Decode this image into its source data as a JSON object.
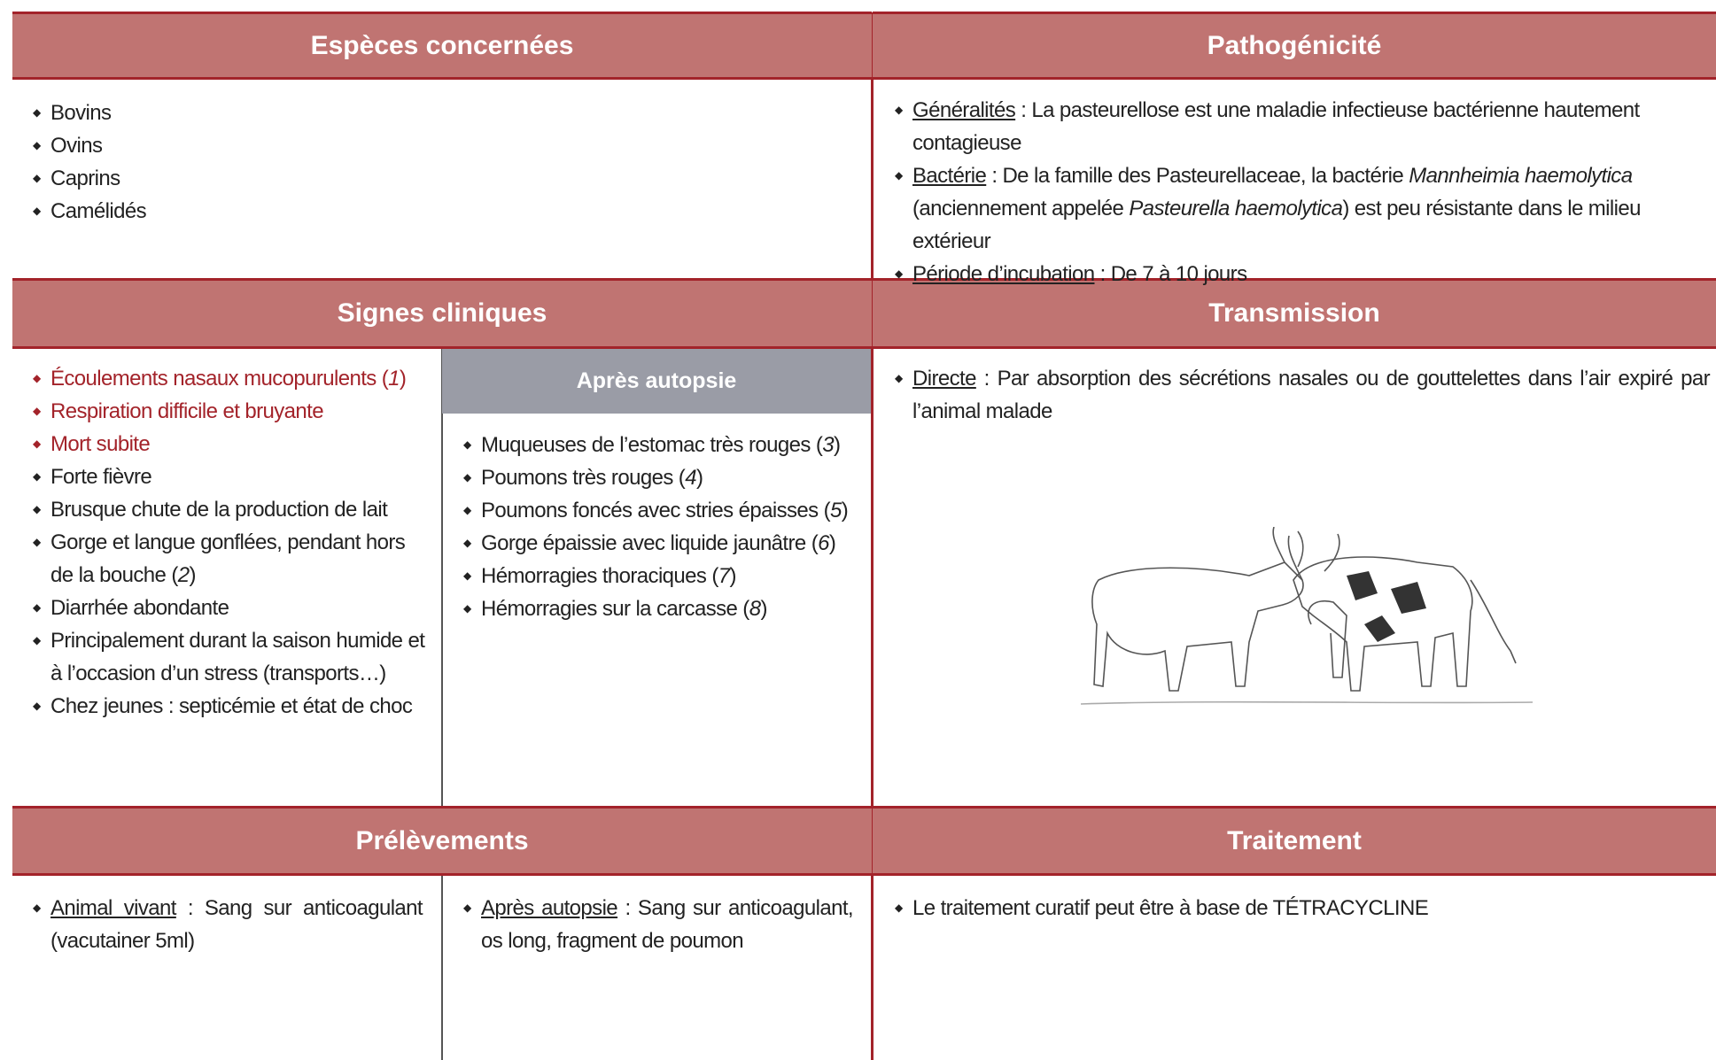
{
  "sections": {
    "especes": {
      "title": "Espèces concernées",
      "items": [
        {
          "segments": [
            {
              "text": "Bovins"
            }
          ]
        },
        {
          "segments": [
            {
              "text": "Ovins"
            }
          ]
        },
        {
          "segments": [
            {
              "text": "Caprins"
            }
          ]
        },
        {
          "segments": [
            {
              "text": "Camélidés"
            }
          ]
        }
      ]
    },
    "pathogenicite": {
      "title": "Pathogénicité",
      "items": [
        {
          "segments": [
            {
              "text": "Généralités",
              "style": "underline"
            },
            {
              "text": " : La pasteurellose est une maladie infectieuse bactérienne hautement contagieuse"
            }
          ]
        },
        {
          "segments": [
            {
              "text": "Bactérie",
              "style": "underline"
            },
            {
              "text": " : De la famille des Pasteurellaceae, la bactérie "
            },
            {
              "text": "Mannheimia haemolytica",
              "style": "italic"
            },
            {
              "text": " (anciennement appelée "
            },
            {
              "text": "Pasteurella haemolytica",
              "style": "italic"
            },
            {
              "text": ") est peu résistante dans le milieu extérieur"
            }
          ]
        },
        {
          "segments": [
            {
              "text": "Période d’incubation",
              "style": "underline"
            },
            {
              "text": " : De 7 à 10 jours"
            }
          ]
        }
      ]
    },
    "signes": {
      "title": "Signes cliniques",
      "items": [
        {
          "color": "#a3232a",
          "segments": [
            {
              "text": "Écoulements nasaux mucopurulents ("
            },
            {
              "text": "1",
              "style": "italic"
            },
            {
              "text": ")"
            }
          ]
        },
        {
          "color": "#a3232a",
          "segments": [
            {
              "text": "Respiration difficile et bruyante"
            }
          ]
        },
        {
          "color": "#a3232a",
          "segments": [
            {
              "text": "Mort subite"
            }
          ]
        },
        {
          "segments": [
            {
              "text": "Forte fièvre"
            }
          ]
        },
        {
          "segments": [
            {
              "text": "Brusque chute de la production de lait"
            }
          ]
        },
        {
          "segments": [
            {
              "text": "Gorge et langue gonflées, pendant hors de la bouche ("
            },
            {
              "text": "2",
              "style": "italic"
            },
            {
              "text": ")"
            }
          ]
        },
        {
          "segments": [
            {
              "text": "Diarrhée abondante"
            }
          ]
        },
        {
          "segments": [
            {
              "text": "Principalement durant la saison humide et à l’occasion d’un stress (transports…)"
            }
          ]
        },
        {
          "segments": [
            {
              "text": "Chez jeunes : septicémie et état de choc"
            }
          ]
        }
      ]
    },
    "autopsie": {
      "title": "Après autopsie",
      "items": [
        {
          "segments": [
            {
              "text": "Muqueuses de l’estomac très rouges ("
            },
            {
              "text": "3",
              "style": "italic"
            },
            {
              "text": ")"
            }
          ]
        },
        {
          "segments": [
            {
              "text": "Poumons très rouges ("
            },
            {
              "text": "4",
              "style": "italic"
            },
            {
              "text": ")"
            }
          ]
        },
        {
          "segments": [
            {
              "text": "Poumons foncés avec stries épaisses ("
            },
            {
              "text": "5",
              "style": "italic"
            },
            {
              "text": ")"
            }
          ]
        },
        {
          "segments": [
            {
              "text": "Gorge épaissie avec liquide jaunâtre ("
            },
            {
              "text": "6",
              "style": "italic"
            },
            {
              "text": ")"
            }
          ]
        },
        {
          "segments": [
            {
              "text": "Hémorragies thoraciques ("
            },
            {
              "text": "7",
              "style": "italic"
            },
            {
              "text": ")"
            }
          ]
        },
        {
          "segments": [
            {
              "text": "Hémorragies sur la carcasse ("
            },
            {
              "text": "8",
              "style": "italic"
            },
            {
              "text": ")"
            }
          ]
        }
      ]
    },
    "transmission": {
      "title": "Transmission",
      "items": [
        {
          "segments": [
            {
              "text": "Directe",
              "style": "underline"
            },
            {
              "text": " : Par absorption des sécrétions nasales ou de gouttelettes dans l’air expiré par l’animal malade"
            }
          ]
        }
      ]
    },
    "prelevements": {
      "title": "Prélèvements",
      "items": [
        {
          "segments": [
            {
              "text": "Animal vivant",
              "style": "underline"
            },
            {
              "text": " : Sang sur anticoagulant (vacutainer 5ml)"
            }
          ]
        },
        {
          "segments": [
            {
              "text": "Après autopsie",
              "style": "underline"
            },
            {
              "text": " : Sang sur anticoagulant, os long, fragment de poumon"
            }
          ]
        }
      ]
    },
    "traitement": {
      "title": "Traitement",
      "items": [
        {
          "segments": [
            {
              "text": "Le traitement curatif peut être à base de TÉTRACYCLINE"
            }
          ]
        }
      ]
    }
  }
}
